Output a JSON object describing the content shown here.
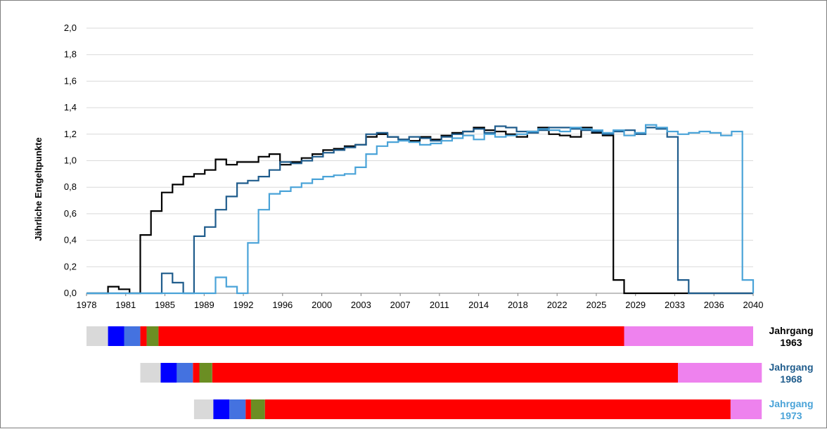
{
  "chart_data": {
    "type": "line",
    "title": "",
    "ylabel": "Jährliche Entgeltpunkte",
    "xlabel": "",
    "xlim": [
      1978,
      2040
    ],
    "ylim": [
      0,
      2.0
    ],
    "grid": true,
    "x_ticks": [
      "1978",
      "1981",
      "1985",
      "1989",
      "1992",
      "1996",
      "2000",
      "2003",
      "2007",
      "2011",
      "2014",
      "2018",
      "2022",
      "2025",
      "2029",
      "2033",
      "2036",
      "2040"
    ],
    "y_ticks": [
      "0,0",
      "0,2",
      "0,4",
      "0,6",
      "0,8",
      "1,0",
      "1,2",
      "1,4",
      "1,6",
      "1,8",
      "2,0"
    ],
    "series": [
      {
        "name": "Jahrgang 1963",
        "color": "#000000",
        "step": true,
        "x": [
          1978,
          1980,
          1981,
          1982,
          1983,
          1984,
          1985,
          1986,
          1987,
          1988,
          1989,
          1990,
          1991,
          1992,
          1993,
          1994,
          1995,
          1996,
          1997,
          1998,
          1999,
          2000,
          2001,
          2002,
          2003,
          2004,
          2005,
          2006,
          2007,
          2008,
          2009,
          2010,
          2011,
          2012,
          2013,
          2014,
          2015,
          2016,
          2017,
          2018,
          2019,
          2020,
          2021,
          2022,
          2023,
          2024,
          2025,
          2026,
          2027,
          2028,
          2029,
          2035
        ],
        "y": [
          0,
          0.05,
          0.03,
          0,
          0.44,
          0.62,
          0.76,
          0.82,
          0.88,
          0.9,
          0.93,
          1.01,
          0.97,
          0.99,
          0.99,
          1.03,
          1.05,
          0.97,
          0.99,
          1.02,
          1.05,
          1.08,
          1.09,
          1.11,
          1.12,
          1.18,
          1.2,
          1.18,
          1.16,
          1.15,
          1.18,
          1.16,
          1.19,
          1.21,
          1.22,
          1.25,
          1.23,
          1.22,
          1.2,
          1.18,
          1.22,
          1.25,
          1.2,
          1.19,
          1.18,
          1.25,
          1.21,
          1.19,
          0.1,
          0,
          0,
          0
        ]
      },
      {
        "name": "Jahrgang 1968",
        "color": "#1f5c8c",
        "step": true,
        "x": [
          1978,
          1985,
          1986,
          1987,
          1988,
          1989,
          1990,
          1991,
          1992,
          1993,
          1994,
          1995,
          1996,
          1997,
          1998,
          1999,
          2000,
          2001,
          2002,
          2003,
          2004,
          2005,
          2006,
          2007,
          2008,
          2009,
          2010,
          2011,
          2012,
          2013,
          2014,
          2015,
          2016,
          2017,
          2018,
          2019,
          2020,
          2021,
          2022,
          2023,
          2024,
          2025,
          2026,
          2027,
          2028,
          2029,
          2030,
          2031,
          2032,
          2033,
          2034,
          2040
        ],
        "y": [
          0,
          0.15,
          0.08,
          0,
          0.43,
          0.5,
          0.63,
          0.73,
          0.83,
          0.85,
          0.88,
          0.93,
          0.99,
          0.98,
          1.0,
          1.03,
          1.06,
          1.08,
          1.1,
          1.12,
          1.2,
          1.21,
          1.18,
          1.16,
          1.18,
          1.17,
          1.15,
          1.18,
          1.2,
          1.22,
          1.24,
          1.21,
          1.26,
          1.25,
          1.22,
          1.21,
          1.23,
          1.25,
          1.25,
          1.24,
          1.23,
          1.22,
          1.2,
          1.22,
          1.23,
          1.2,
          1.25,
          1.24,
          1.18,
          0.1,
          0,
          0
        ]
      },
      {
        "name": "Jahrgang 1973",
        "color": "#4aa3d8",
        "step": true,
        "x": [
          1978,
          1990,
          1991,
          1992,
          1993,
          1994,
          1995,
          1996,
          1997,
          1998,
          1999,
          2000,
          2001,
          2002,
          2003,
          2004,
          2005,
          2006,
          2007,
          2008,
          2009,
          2010,
          2011,
          2012,
          2013,
          2014,
          2015,
          2016,
          2017,
          2018,
          2019,
          2020,
          2021,
          2022,
          2023,
          2024,
          2025,
          2026,
          2027,
          2028,
          2029,
          2030,
          2031,
          2032,
          2033,
          2034,
          2035,
          2036,
          2037,
          2038,
          2039,
          2040
        ],
        "y": [
          0,
          0.12,
          0.05,
          0,
          0.38,
          0.63,
          0.75,
          0.77,
          0.8,
          0.83,
          0.86,
          0.88,
          0.89,
          0.9,
          0.95,
          1.05,
          1.11,
          1.14,
          1.15,
          1.14,
          1.12,
          1.13,
          1.15,
          1.17,
          1.19,
          1.16,
          1.2,
          1.18,
          1.19,
          1.2,
          1.22,
          1.24,
          1.23,
          1.22,
          1.25,
          1.24,
          1.23,
          1.21,
          1.23,
          1.19,
          1.21,
          1.27,
          1.25,
          1.22,
          1.2,
          1.21,
          1.22,
          1.21,
          1.19,
          1.22,
          0.1,
          0
        ]
      }
    ],
    "timelines": [
      {
        "label_line1": "Jahrgang",
        "label_line2": "1963",
        "label_color": "#000000",
        "segments": [
          {
            "from": 1978,
            "to": 1980,
            "color": "#d9d9d9"
          },
          {
            "from": 1980,
            "to": 1981.5,
            "color": "#0000ff"
          },
          {
            "from": 1981.5,
            "to": 1983,
            "color": "#4472e0"
          },
          {
            "from": 1983,
            "to": 1983.6,
            "color": "#ff0000"
          },
          {
            "from": 1983.6,
            "to": 1984.7,
            "color": "#6b8e23"
          },
          {
            "from": 1984.7,
            "to": 2028,
            "color": "#ff0000"
          },
          {
            "from": 2028,
            "to": 2040,
            "color": "#ee82ee"
          }
        ]
      },
      {
        "label_line1": "Jahrgang",
        "label_line2": "1968",
        "label_color": "#1f5c8c",
        "segments": [
          {
            "from": 1983,
            "to": 1984.9,
            "color": "#d9d9d9"
          },
          {
            "from": 1984.9,
            "to": 1986.4,
            "color": "#0000ff"
          },
          {
            "from": 1986.4,
            "to": 1987.9,
            "color": "#4472e0"
          },
          {
            "from": 1987.9,
            "to": 1988.5,
            "color": "#ff0000"
          },
          {
            "from": 1988.5,
            "to": 1989.7,
            "color": "#6b8e23"
          },
          {
            "from": 1989.7,
            "to": 2033,
            "color": "#ff0000"
          },
          {
            "from": 2033,
            "to": 2040.8,
            "color": "#ee82ee"
          }
        ]
      },
      {
        "label_line1": "Jahrgang",
        "label_line2": "1973",
        "label_color": "#4aa3d8",
        "segments": [
          {
            "from": 1988,
            "to": 1989.8,
            "color": "#d9d9d9"
          },
          {
            "from": 1989.8,
            "to": 1991.3,
            "color": "#0000ff"
          },
          {
            "from": 1991.3,
            "to": 1992.8,
            "color": "#4472e0"
          },
          {
            "from": 1992.8,
            "to": 1993.3,
            "color": "#ff0000"
          },
          {
            "from": 1993.3,
            "to": 1994.6,
            "color": "#6b8e23"
          },
          {
            "from": 1994.6,
            "to": 2037.9,
            "color": "#ff0000"
          },
          {
            "from": 2037.9,
            "to": 2040.8,
            "color": "#ee82ee"
          }
        ]
      }
    ]
  }
}
